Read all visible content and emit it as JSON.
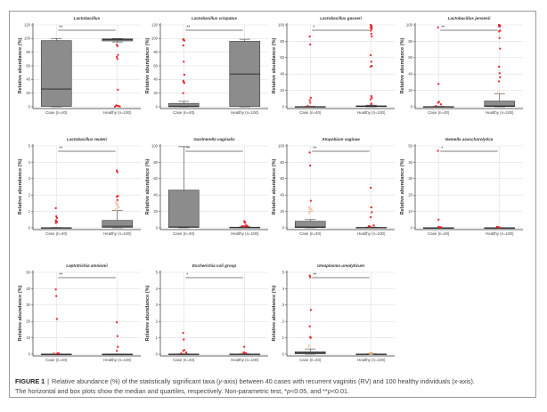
{
  "figure": {
    "caption_label": "FIGURE 1",
    "caption_separator": "|",
    "caption_line1_a": "Relative abundance (%) of the statistically significant taxa (",
    "caption_line1_y": "y",
    "caption_line1_b": "-axis) between 40 cases with recurrent vaginitis (RV) and 100 healthy individuals (",
    "caption_line1_x": "x",
    "caption_line1_c": "-axis).",
    "caption_line2_a": "The horizontal and box plots show the median and quartiles, respectively. Non-parametric test, *",
    "caption_p1": "p",
    "caption_line2_b": "<0.05, and **",
    "caption_p2": "p",
    "caption_line2_c": "<0.01."
  },
  "colors": {
    "box_fill": "#8c8c8c",
    "box_stroke": "#3a3a3a",
    "outlier": "#e8232a",
    "near_outlier": "#f0a882",
    "grid": "#d9d9d9",
    "axis": "#333333"
  },
  "chart_data": [
    {
      "type": "box",
      "title": "Lactobacillus",
      "ylabel": "Relative abundance (%)",
      "categories": [
        "Case (n=40)",
        "Healthy (n=100)"
      ],
      "ylim": [
        0,
        120
      ],
      "yticks": [
        0,
        20,
        40,
        60,
        80,
        100,
        120
      ],
      "grid": true,
      "significance": "**",
      "groups": [
        {
          "name": "Case (n=40)",
          "min": 0,
          "q1": 0.5,
          "median": 26,
          "q3": 97,
          "max": 100,
          "outliers": [],
          "near_outliers": []
        },
        {
          "name": "Healthy (n=100)",
          "min": 95,
          "q1": 96.5,
          "median": 98.5,
          "q3": 99.5,
          "max": 100,
          "outliers": [
            91,
            89,
            76,
            73,
            70,
            25,
            2,
            1.5,
            1,
            0.5,
            0.2
          ],
          "near_outliers": []
        }
      ]
    },
    {
      "type": "box",
      "title": "Lactobacillus crispatus",
      "ylabel": "Relative abundance (%)",
      "categories": [
        "Case (n=40)",
        "Healthy (n=100)"
      ],
      "ylim": [
        0,
        120
      ],
      "yticks": [
        0,
        20,
        40,
        60,
        80,
        100,
        120
      ],
      "grid": true,
      "significance": "**",
      "groups": [
        {
          "name": "Case (n=40)",
          "min": 0,
          "q1": 0,
          "median": 1,
          "q3": 5,
          "max": 8,
          "outliers": [
            99,
            98,
            97,
            90,
            66,
            47,
            38,
            36,
            35,
            20
          ],
          "near_outliers": []
        },
        {
          "name": "Healthy (n=100)",
          "min": 0,
          "q1": 0.5,
          "median": 48,
          "q3": 96,
          "max": 99,
          "outliers": [],
          "near_outliers": []
        }
      ]
    },
    {
      "type": "box",
      "title": "Lactobacillus gasseri",
      "ylabel": "Relative abundance (%)",
      "categories": [
        "Case (n=40)",
        "Healthy (n=100)"
      ],
      "ylim": [
        0,
        100
      ],
      "yticks": [
        0,
        20,
        40,
        60,
        80,
        100
      ],
      "grid": true,
      "significance": "*",
      "groups": [
        {
          "name": "Case (n=40)",
          "min": 0,
          "q1": 0,
          "median": 0,
          "q3": 0.3,
          "max": 0.5,
          "outliers": [
            86,
            76,
            11,
            8,
            5,
            1
          ],
          "near_outliers": []
        },
        {
          "name": "Healthy (n=100)",
          "min": 0,
          "q1": 0.2,
          "median": 0.6,
          "q3": 1.2,
          "max": 2,
          "outliers": [
            100,
            99,
            98,
            97,
            96,
            95,
            93,
            89,
            86,
            63,
            55,
            50,
            49,
            13,
            11,
            9,
            4,
            3
          ],
          "near_outliers": []
        }
      ]
    },
    {
      "type": "box",
      "title": "Lactobacillus jensenii",
      "ylabel": "Relative abundance (%)",
      "categories": [
        "Case (n=40)",
        "Healthy (n=100)"
      ],
      "ylim": [
        0,
        100
      ],
      "yticks": [
        0,
        20,
        40,
        60,
        80,
        100
      ],
      "grid": true,
      "significance": "**",
      "groups": [
        {
          "name": "Case (n=40)",
          "min": 0,
          "q1": 0,
          "median": 0,
          "q3": 0.3,
          "max": 0.5,
          "outliers": [
            97,
            28,
            6,
            5,
            3,
            1
          ],
          "near_outliers": []
        },
        {
          "name": "Healthy (n=100)",
          "min": 0,
          "q1": 0.3,
          "median": 1,
          "q3": 7,
          "max": 16,
          "outliers": [
            100,
            99.5,
            99,
            98.5,
            98,
            93,
            92,
            84,
            71,
            49,
            41,
            36,
            31
          ],
          "near_outliers": [
            17
          ]
        }
      ]
    },
    {
      "type": "box",
      "title": "Lactobacillus reuteri",
      "ylabel": "Relative abundance (%)",
      "categories": [
        "Case (n=40)",
        "Healthy (n=100)"
      ],
      "ylim": [
        0,
        5
      ],
      "yticks": [
        0,
        1,
        2,
        3,
        4,
        5
      ],
      "grid": true,
      "significance": "**",
      "groups": [
        {
          "name": "Case (n=40)",
          "min": 0,
          "q1": 0,
          "median": 0,
          "q3": 0.01,
          "max": 0.02,
          "outliers": [
            1.2,
            0.7,
            0.6,
            0.45,
            0.4,
            0.35,
            0.3
          ],
          "near_outliers": []
        },
        {
          "name": "Healthy (n=100)",
          "min": 0,
          "q1": 0.02,
          "median": 0.1,
          "q3": 0.45,
          "max": 1.05,
          "outliers": [
            3.5,
            3.4,
            1.95,
            1.9,
            1.7
          ],
          "near_outliers": [
            1.55,
            1.4,
            1.25,
            1.1
          ]
        }
      ]
    },
    {
      "type": "box",
      "title": "Gardnerella vaginalis",
      "ylabel": "Relative abundance (%)",
      "categories": [
        "Case (n=40)",
        "Healthy (n=100)"
      ],
      "ylim": [
        0,
        100
      ],
      "yticks": [
        0,
        20,
        40,
        60,
        80,
        100
      ],
      "grid": true,
      "significance": "**",
      "groups": [
        {
          "name": "Case (n=40)",
          "min": 0,
          "q1": 0.5,
          "median": 1,
          "q3": 46,
          "max": 99,
          "outliers": [],
          "near_outliers": []
        },
        {
          "name": "Healthy (n=100)",
          "min": 0,
          "q1": 0,
          "median": 0.2,
          "q3": 0.8,
          "max": 1.5,
          "outliers": [
            8,
            7,
            6,
            3,
            2.5,
            2,
            1.8,
            1.6
          ],
          "near_outliers": []
        }
      ]
    },
    {
      "type": "box",
      "title": "Atopobium vaginae",
      "ylabel": "Relative abundance (%)",
      "categories": [
        "Case (n=40)",
        "Healthy (n=100)"
      ],
      "ylim": [
        0,
        100
      ],
      "yticks": [
        0,
        20,
        40,
        60,
        80,
        100
      ],
      "grid": true,
      "significance": "**",
      "groups": [
        {
          "name": "Case (n=40)",
          "min": 0,
          "q1": 0.3,
          "median": 1,
          "q3": 8,
          "max": 10,
          "outliers": [
            92,
            76,
            33
          ],
          "near_outliers": [
            25,
            23,
            21,
            19
          ]
        },
        {
          "name": "Healthy (n=100)",
          "min": 0,
          "q1": 0,
          "median": 0.1,
          "q3": 0.6,
          "max": 1,
          "outliers": [
            49,
            25,
            19,
            13,
            3,
            2,
            1.5
          ],
          "near_outliers": []
        }
      ]
    },
    {
      "type": "box",
      "title": "Gemella asaccharolytica",
      "ylabel": "Relative abundance (%)",
      "categories": [
        "Case (n=40)",
        "Healthy (n=100)"
      ],
      "ylim": [
        0,
        50
      ],
      "yticks": [
        0,
        10,
        20,
        30,
        40,
        50
      ],
      "grid": true,
      "significance": "*",
      "groups": [
        {
          "name": "Case (n=40)",
          "min": 0,
          "q1": 0,
          "median": 0,
          "q3": 0.05,
          "max": 0.1,
          "outliers": [
            47,
            5,
            0.6,
            0.4,
            0.3
          ],
          "near_outliers": []
        },
        {
          "name": "Healthy (n=100)",
          "min": 0,
          "q1": 0,
          "median": 0,
          "q3": 0.02,
          "max": 0.05,
          "outliers": [
            0.6,
            0.4,
            0.2
          ],
          "near_outliers": []
        }
      ]
    },
    {
      "type": "box",
      "title": "Leptotrichia amnionii",
      "ylabel": "Relative abundance (%)",
      "categories": [
        "Case (n=40)",
        "Healthy (n=100)"
      ],
      "ylim": [
        0,
        50
      ],
      "yticks": [
        0,
        10,
        20,
        30,
        40,
        50
      ],
      "grid": true,
      "significance": "**",
      "groups": [
        {
          "name": "Case (n=40)",
          "min": 0,
          "q1": 0,
          "median": 0,
          "q3": 0.05,
          "max": 0.1,
          "outliers": [
            39.5,
            35.5,
            21.5,
            0.6,
            0.4,
            0.3
          ],
          "near_outliers": []
        },
        {
          "name": "Healthy (n=100)",
          "min": 0,
          "q1": 0,
          "median": 0,
          "q3": 0.02,
          "max": 0.05,
          "outliers": [
            19.5,
            11,
            4.5,
            2
          ],
          "near_outliers": []
        }
      ]
    },
    {
      "type": "box",
      "title": "Escherichia coli group",
      "ylabel": "Relative abundance (%)",
      "categories": [
        "Case (n=40)",
        "Healthy (n=100)"
      ],
      "ylim": [
        0,
        5
      ],
      "yticks": [
        0,
        1,
        2,
        3,
        4,
        5
      ],
      "grid": true,
      "significance": "*",
      "groups": [
        {
          "name": "Case (n=40)",
          "min": 0,
          "q1": 0,
          "median": 0,
          "q3": 0.01,
          "max": 0.02,
          "outliers": [
            1.3,
            0.9,
            0.25,
            0.2,
            0.1,
            0.05
          ],
          "near_outliers": []
        },
        {
          "name": "Healthy (n=100)",
          "min": 0,
          "q1": 0,
          "median": 0,
          "q3": 0.01,
          "max": 0.02,
          "outliers": [
            0.45,
            0.1,
            0.08,
            0.05
          ],
          "near_outliers": []
        }
      ]
    },
    {
      "type": "box",
      "title": "Ureaplasma urealyticum",
      "ylabel": "Relative abundance (%)",
      "categories": [
        "Case (n=40)",
        "Healthy (n=100)"
      ],
      "ylim": [
        0,
        5
      ],
      "yticks": [
        0,
        1,
        2,
        3,
        4,
        5
      ],
      "grid": true,
      "significance": "**",
      "groups": [
        {
          "name": "Case (n=40)",
          "min": 0,
          "q1": 0.02,
          "median": 0.08,
          "q3": 0.15,
          "max": 0.32,
          "outliers": [
            4.8,
            4.7,
            2.7,
            1.7,
            1.05,
            1.0
          ],
          "near_outliers": [
            0.5
          ]
        },
        {
          "name": "Healthy (n=100)",
          "min": 0,
          "q1": 0,
          "median": 0,
          "q3": 0.01,
          "max": 0.02,
          "outliers": [],
          "near_outliers": [
            0.05,
            0.04,
            0.03,
            0.02
          ]
        }
      ]
    }
  ]
}
